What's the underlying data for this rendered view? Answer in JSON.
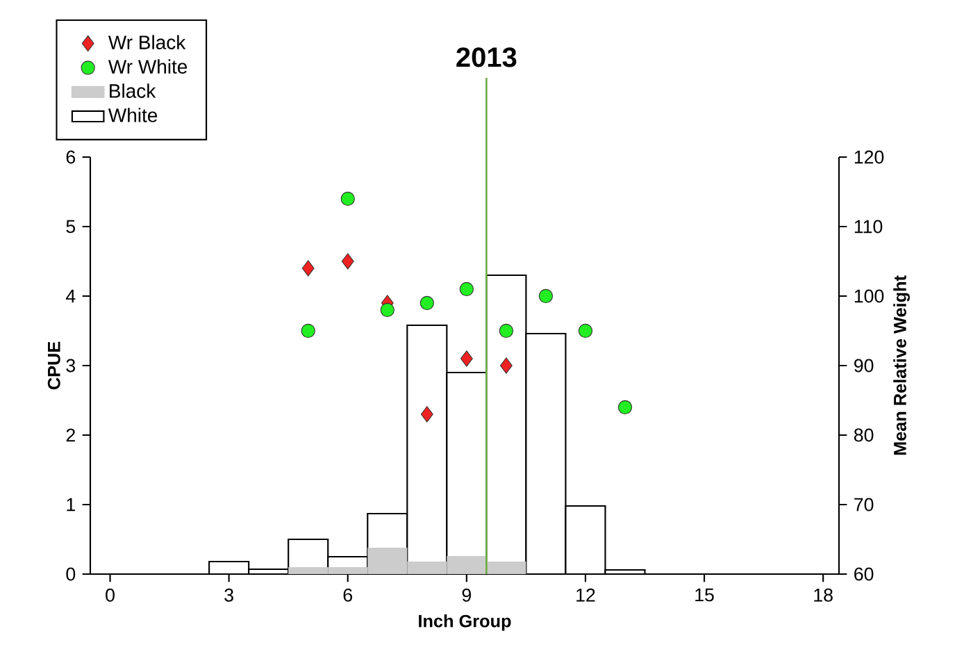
{
  "chart_data": {
    "type": "bar",
    "title": "2013",
    "xlabel": "Inch Group",
    "ylabel": "CPUE",
    "y2label": "Mean Relative Weight",
    "xlim": [
      -0.5,
      18.4
    ],
    "xticks": [
      0,
      3,
      6,
      9,
      12,
      15,
      18
    ],
    "ylim": [
      0,
      6
    ],
    "yticks": [
      0,
      1,
      2,
      3,
      4,
      5,
      6
    ],
    "y2lim": [
      60,
      120
    ],
    "y2ticks": [
      60,
      70,
      80,
      90,
      100,
      110,
      120
    ],
    "legend": "top left",
    "ref_lines": [
      {
        "axis": "x",
        "value": 9.5,
        "color": "#70ad47"
      }
    ],
    "series": [
      {
        "name": "Wr Black",
        "type": "scatter",
        "axis": "y2",
        "marker": "diamond",
        "color": "#ee2222",
        "x": [
          5,
          6,
          7,
          8,
          9,
          10
        ],
        "values": [
          104,
          105,
          99,
          83,
          91,
          90
        ]
      },
      {
        "name": "Wr White",
        "type": "scatter",
        "axis": "y2",
        "marker": "circle",
        "color": "#22ee22",
        "x": [
          5,
          6,
          7,
          8,
          9,
          10,
          11,
          12,
          13
        ],
        "values": [
          95,
          114,
          98,
          99,
          101,
          95,
          100,
          95,
          84
        ]
      },
      {
        "name": "Black",
        "color": "#cccccc",
        "x": [
          5,
          6,
          7,
          8,
          9,
          10
        ],
        "values": [
          0.1,
          0.1,
          0.38,
          0.18,
          0.26,
          0.18
        ]
      },
      {
        "name": "White",
        "color": "#ffffff",
        "x": [
          3,
          4,
          5,
          6,
          7,
          8,
          9,
          10,
          11,
          12,
          13
        ],
        "values": [
          0.18,
          0.07,
          0.5,
          0.25,
          0.87,
          3.58,
          2.9,
          4.3,
          3.46,
          0.98,
          0.06
        ]
      }
    ]
  }
}
